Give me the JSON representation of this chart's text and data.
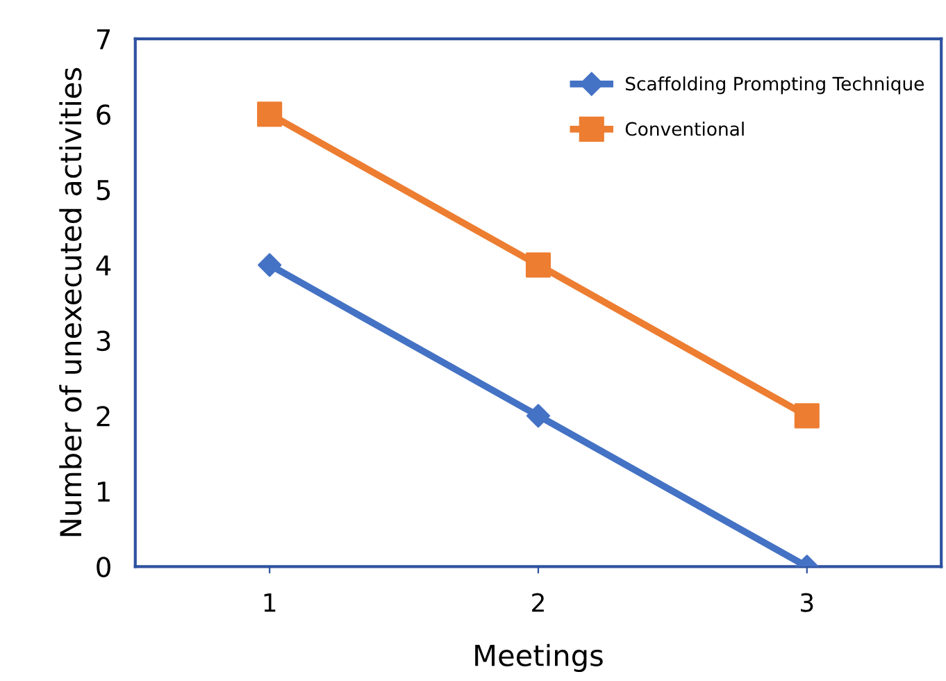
{
  "chart_data": {
    "type": "line",
    "xlabel": "Meetings",
    "ylabel": "Number of unexecuted activities",
    "x": [
      1,
      2,
      3
    ],
    "xlim": [
      0.5,
      3.5
    ],
    "xticks": [
      1,
      2,
      3
    ],
    "series": [
      {
        "name": "Scaffolding Prompting Technique",
        "color": "#4472c4",
        "values": [
          4,
          2,
          0
        ],
        "marker": "diamond"
      },
      {
        "name": "Conventional",
        "color": "#ed7d31",
        "values": [
          6,
          4,
          2
        ],
        "marker": "square"
      }
    ],
    "ylim": [
      0,
      7
    ],
    "yticks": [
      0,
      1,
      2,
      3,
      4,
      5,
      6,
      7
    ],
    "grid": false,
    "legend": "top right",
    "line_style": "solid"
  }
}
